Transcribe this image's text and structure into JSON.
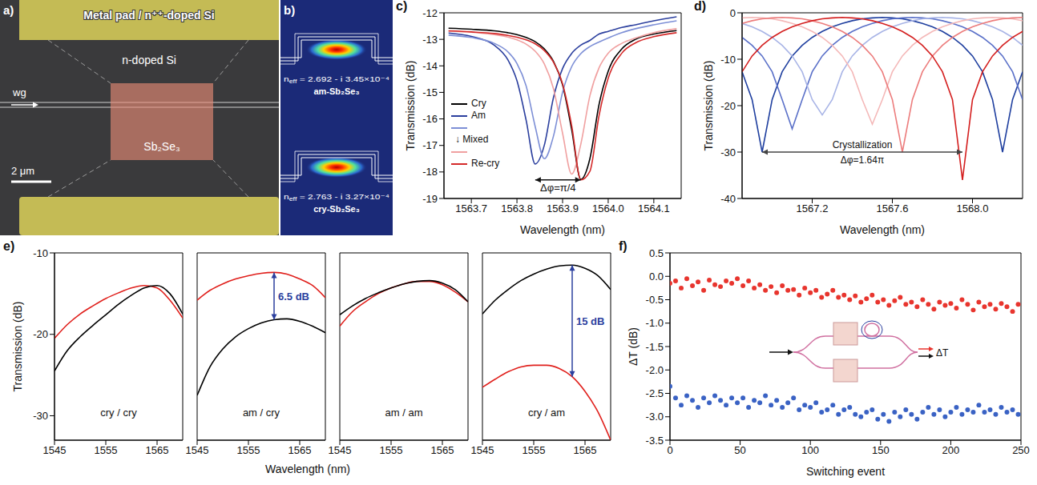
{
  "figure": {
    "a": {
      "panel": "a)",
      "pad_label": "Metal pad / n⁺⁺-doped Si",
      "region_label": "n-doped Si",
      "waveguide_label": "wg",
      "material_label": "Sb₂Se₃",
      "scale_bar": "2 μm"
    },
    "b": {
      "panel": "b)",
      "modes": [
        {
          "symbol": "n",
          "subscript": "eff",
          "value": " = 2.692 - i 3.45×10⁻⁴",
          "material": "am-Sb₂Se₃"
        },
        {
          "symbol": "n",
          "subscript": "eff",
          "value": " = 2.763 - i 3.27×10⁻⁴",
          "material": "cry-Sb₂Se₃"
        }
      ]
    }
  },
  "chart_data": [
    {
      "panel": "c)",
      "type": "line",
      "x_label": "Wavelength (nm)",
      "y_label": "Transmission (dB)",
      "xlim": [
        1563.64,
        1564.16
      ],
      "xticks": [
        1563.7,
        1563.8,
        1563.9,
        {
          "value": 1564,
          "label": "1564.0"
        },
        1564.1
      ],
      "ylim": [
        -19,
        -12
      ],
      "yticks": [
        -19,
        -18,
        -17,
        -16,
        -15,
        -14,
        -13,
        -12
      ],
      "legend": "lower left",
      "annotations": [
        "↓ Mixed",
        "Δφ=π/4"
      ],
      "x": [
        1563.65,
        1563.7,
        1563.75,
        1563.78,
        1563.8,
        1563.82,
        1563.84,
        1563.86,
        1563.88,
        1563.9,
        1563.92,
        1563.94,
        1563.96,
        1563.98,
        1564,
        1564.03,
        1564.06,
        1564.1,
        1564.15
      ],
      "series": [
        {
          "name": "Cry",
          "color": "#000000",
          "values": [
            -12.58,
            -12.62,
            -12.68,
            -12.75,
            -12.82,
            -12.93,
            -13.09,
            -13.36,
            -13.83,
            -14.72,
            -16.41,
            -18.28,
            -17.49,
            -15.45,
            -14.2,
            -13.36,
            -13.0,
            -12.8,
            -12.67
          ]
        },
        {
          "name": "Am",
          "color": "#2b3f9e",
          "values": [
            -12.76,
            -12.89,
            -13.22,
            -13.77,
            -14.56,
            -16.04,
            -17.7,
            -16.99,
            -15.2,
            -14.1,
            -13.53,
            -13.22,
            -13.04,
            -12.8,
            -12.7,
            -12.55,
            -12.45,
            -12.3,
            -12.15
          ]
        },
        {
          "color": "#7d8fd6",
          "values": [
            -12.84,
            -12.93,
            -13.15,
            -13.47,
            -13.91,
            -14.75,
            -16.29,
            -17.5,
            -16.65,
            -14.99,
            -14.03,
            -13.54,
            -13.27,
            -13.1,
            -12.95,
            -12.75,
            -12.6,
            -12.45,
            -12.3
          ]
        },
        {
          "color": "#f0a0a0",
          "values": [
            -12.69,
            -12.73,
            -12.82,
            -12.91,
            -13.02,
            -13.18,
            -13.45,
            -13.93,
            -14.86,
            -16.54,
            -18.08,
            -16.95,
            -15.12,
            -14.07,
            -13.52,
            -13.15,
            -12.95,
            -12.75,
            -12.6
          ]
        },
        {
          "name": "Re-cry",
          "color": "#d42a2a",
          "values": [
            -12.68,
            -12.72,
            -12.78,
            -12.85,
            -12.92,
            -13.02,
            -13.17,
            -13.42,
            -13.86,
            -14.68,
            -16.26,
            -18.3,
            -17.97,
            -15.87,
            -14.47,
            -13.52,
            -13.13,
            -12.9,
            -12.75
          ]
        }
      ]
    },
    {
      "panel": "d)",
      "type": "line",
      "x_label": "Wavelength (nm)",
      "y_label": "Transmission (dB)",
      "xlim": [
        1566.85,
        1568.25
      ],
      "xticks": [
        1567.2,
        1567.6,
        {
          "value": 1568,
          "label": "1568.0"
        }
      ],
      "ylim": [
        -40,
        0
      ],
      "yticks": [
        -40,
        -30,
        -20,
        -10,
        0
      ],
      "annotations": [
        "Crystallization",
        "Δφ=1.64π"
      ],
      "x": [
        1566.85,
        1566.9,
        1566.95,
        1567,
        1567.05,
        1567.1,
        1567.15,
        1567.2,
        1567.25,
        1567.3,
        1567.35,
        1567.4,
        1567.45,
        1567.5,
        1567.55,
        1567.6,
        1567.65,
        1567.7,
        1567.75,
        1567.8,
        1567.85,
        1567.9,
        1567.95,
        1568,
        1568.05,
        1568.1,
        1568.15,
        1568.2,
        1568.25
      ],
      "series": [
        {
          "color": "#1f3f9f",
          "values": [
            -12.7,
            -18.7,
            -30,
            -18.7,
            -12.7,
            -9.3,
            -7,
            -5.3,
            -4,
            -3,
            -2.3,
            -1.7,
            -1.3,
            -1.1,
            -1,
            -1.1,
            -1.3,
            -1.7,
            -2.3,
            -3,
            -4,
            -5.3,
            -7,
            -9.3,
            -12.7,
            -18.7,
            -30,
            -18.7,
            -12.7
          ]
        },
        {
          "color": "#5a70c8",
          "values": [
            -5.3,
            -7,
            -9.3,
            -12.7,
            -18.7,
            -25,
            -18.7,
            -12.7,
            -9.3,
            -7,
            -5.3,
            -4,
            -3,
            -2.3,
            -1.7,
            -1.3,
            -1.1,
            -1,
            -1.1,
            -1.3,
            -1.7,
            -2.3,
            -3,
            -4,
            -5.3,
            -7,
            -9.3,
            -12.7,
            -18.7
          ]
        },
        {
          "color": "#a8b4e6",
          "values": [
            -2.3,
            -3,
            -4,
            -5.3,
            -7,
            -9.3,
            -12.7,
            -18.7,
            -22,
            -18.7,
            -12.7,
            -9.3,
            -7,
            -5.3,
            -4,
            -3,
            -2.3,
            -1.7,
            -1.3,
            -1.1,
            -1,
            -1.1,
            -1.3,
            -1.7,
            -2.3,
            -3,
            -4,
            -5.3,
            -7
          ]
        },
        {
          "color": "#f4b8b8",
          "values": [
            -1.1,
            -1,
            -1.1,
            -1.3,
            -1.7,
            -2.3,
            -3,
            -4,
            -5.3,
            -7,
            -9.3,
            -12.7,
            -18.7,
            -24,
            -18.7,
            -12.7,
            -9.3,
            -7,
            -5.3,
            -4,
            -3,
            -2.3,
            -1.7,
            -1.3,
            -1.1,
            -1,
            -1.1,
            -1.3,
            -1.7
          ]
        },
        {
          "color": "#ec7c7c",
          "values": [
            -2.3,
            -1.7,
            -1.3,
            -1.1,
            -1,
            -1.1,
            -1.3,
            -1.7,
            -2.3,
            -3,
            -4,
            -5.3,
            -7,
            -9.3,
            -12.7,
            -18.7,
            -30,
            -18.7,
            -12.7,
            -9.3,
            -7,
            -5.3,
            -4,
            -3,
            -2.3,
            -1.7,
            -1.3,
            -1.1,
            -1
          ]
        },
        {
          "color": "#d41f1f",
          "values": [
            -12.7,
            -9.3,
            -7,
            -5.3,
            -4,
            -3,
            -2.3,
            -1.7,
            -1.3,
            -1.1,
            -1,
            -1.1,
            -1.3,
            -1.7,
            -2.3,
            -3,
            -4,
            -5.3,
            -7,
            -9.3,
            -12.7,
            -18.7,
            -36,
            -18.7,
            -12.7,
            -9.3,
            -7,
            -5.3,
            -4
          ]
        }
      ]
    },
    {
      "panel": "e)",
      "type": "line",
      "x_label": "Wavelength (nm)",
      "y_label": "Transmission (dB)",
      "xlim": [
        1545,
        1570
      ],
      "xticks": [
        1545,
        1555,
        1565
      ],
      "ylim": [
        -33,
        -10
      ],
      "yticks": [
        -30,
        -20,
        -10
      ],
      "x": [
        1545,
        1547.5,
        1550,
        1552.5,
        1555,
        1557.5,
        1560,
        1562.5,
        1565,
        1567.5,
        1570
      ],
      "subplots": [
        {
          "title": "cry / cry",
          "series": [
            {
              "color": "#e0201c",
              "values": [
                -20.5,
                -18.8,
                -17.5,
                -16.5,
                -15.6,
                -14.9,
                -14.3,
                -14.0,
                -14.3,
                -15.8,
                -18.0
              ]
            },
            {
              "color": "#000000",
              "values": [
                -24.5,
                -22.0,
                -20.3,
                -18.9,
                -17.6,
                -16.3,
                -15.2,
                -14.3,
                -14.0,
                -15.0,
                -17.5
              ]
            }
          ]
        },
        {
          "title": "am / cry",
          "annotation": "6.5 dB",
          "series": [
            {
              "color": "#e0201c",
              "values": [
                -15.8,
                -14.6,
                -13.8,
                -13.2,
                -12.8,
                -12.5,
                -12.4,
                -12.6,
                -13.2,
                -14.0,
                -15.5
              ]
            },
            {
              "color": "#000000",
              "values": [
                -27.5,
                -24.0,
                -21.8,
                -20.3,
                -19.3,
                -18.6,
                -18.2,
                -18.1,
                -18.4,
                -19.0,
                -19.8
              ]
            }
          ]
        },
        {
          "title": "am / am",
          "series": [
            {
              "color": "#e0201c",
              "values": [
                -19.0,
                -17.2,
                -16.0,
                -15.0,
                -14.3,
                -13.8,
                -13.5,
                -13.5,
                -13.9,
                -14.8,
                -16.0
              ]
            },
            {
              "color": "#000000",
              "values": [
                -17.6,
                -16.5,
                -15.6,
                -14.9,
                -14.3,
                -13.8,
                -13.5,
                -13.4,
                -13.7,
                -14.5,
                -16.0
              ]
            }
          ]
        },
        {
          "title": "cry / am",
          "annotation": "15 dB",
          "series": [
            {
              "color": "#e0201c",
              "values": [
                -26.5,
                -25.5,
                -24.6,
                -24.0,
                -23.8,
                -23.8,
                -24.2,
                -25.2,
                -27.0,
                -29.5,
                -33.0
              ]
            },
            {
              "color": "#000000",
              "values": [
                -17.5,
                -15.8,
                -14.5,
                -13.4,
                -12.6,
                -12.0,
                -11.6,
                -11.5,
                -11.9,
                -12.8,
                -14.5
              ]
            }
          ]
        }
      ]
    },
    {
      "panel": "f)",
      "type": "scatter",
      "x_label": "Switching event",
      "y_label": "ΔT (dB)",
      "xlim": [
        0,
        250
      ],
      "xticks": [
        0,
        50,
        100,
        150,
        200,
        250
      ],
      "ylim": [
        -3.5,
        0.5
      ],
      "yticks": [
        -3.5,
        {
          "value": -3,
          "label": "-3.0"
        },
        -2.5,
        {
          "value": -2,
          "label": "-2.0"
        },
        -1.5,
        {
          "value": -1,
          "label": "-1.0"
        },
        -0.5,
        {
          "value": 0,
          "label": "0.0"
        },
        0.5
      ],
      "annotation": "ΔT",
      "x": [
        0,
        4,
        8,
        12,
        16,
        20,
        24,
        28,
        32,
        36,
        40,
        44,
        48,
        52,
        56,
        60,
        64,
        68,
        72,
        76,
        80,
        84,
        88,
        92,
        96,
        100,
        104,
        108,
        112,
        116,
        120,
        124,
        128,
        132,
        136,
        140,
        144,
        148,
        152,
        156,
        160,
        164,
        168,
        172,
        176,
        180,
        184,
        188,
        192,
        196,
        200,
        204,
        208,
        212,
        216,
        220,
        224,
        228,
        232,
        236,
        240,
        244,
        248
      ],
      "series": [
        {
          "color": "#e8352e",
          "marker": "circle",
          "values": [
            -0.15,
            -0.1,
            -0.25,
            -0.05,
            -0.2,
            -0.12,
            -0.3,
            -0.08,
            -0.18,
            -0.22,
            -0.1,
            -0.15,
            -0.05,
            -0.2,
            -0.1,
            -0.25,
            -0.18,
            -0.3,
            -0.22,
            -0.35,
            -0.2,
            -0.3,
            -0.28,
            -0.4,
            -0.25,
            -0.35,
            -0.3,
            -0.45,
            -0.38,
            -0.3,
            -0.45,
            -0.4,
            -0.5,
            -0.42,
            -0.55,
            -0.48,
            -0.4,
            -0.55,
            -0.5,
            -0.62,
            -0.52,
            -0.45,
            -0.6,
            -0.55,
            -0.65,
            -0.5,
            -0.6,
            -0.7,
            -0.55,
            -0.62,
            -0.58,
            -0.68,
            -0.5,
            -0.6,
            -0.72,
            -0.55,
            -0.65,
            -0.6,
            -0.7,
            -0.58,
            -0.65,
            -0.75,
            -0.6
          ]
        },
        {
          "color": "#3a62c4",
          "marker": "circle",
          "values": [
            -2.35,
            -2.6,
            -2.75,
            -2.55,
            -2.65,
            -2.8,
            -2.6,
            -2.7,
            -2.55,
            -2.65,
            -2.75,
            -2.6,
            -2.7,
            -2.6,
            -2.8,
            -2.65,
            -2.7,
            -2.55,
            -2.75,
            -2.65,
            -2.8,
            -2.7,
            -2.6,
            -2.85,
            -2.75,
            -2.8,
            -2.7,
            -2.9,
            -2.85,
            -2.75,
            -2.95,
            -2.85,
            -2.8,
            -2.95,
            -3.0,
            -2.9,
            -2.85,
            -3.05,
            -2.95,
            -3.1,
            -2.9,
            -3.0,
            -2.85,
            -2.95,
            -3.05,
            -2.9,
            -2.8,
            -2.95,
            -2.85,
            -3.0,
            -2.9,
            -2.8,
            -2.95,
            -2.85,
            -2.9,
            -2.75,
            -2.9,
            -2.85,
            -2.95,
            -2.8,
            -2.9,
            -2.85,
            -2.95
          ]
        }
      ]
    }
  ]
}
